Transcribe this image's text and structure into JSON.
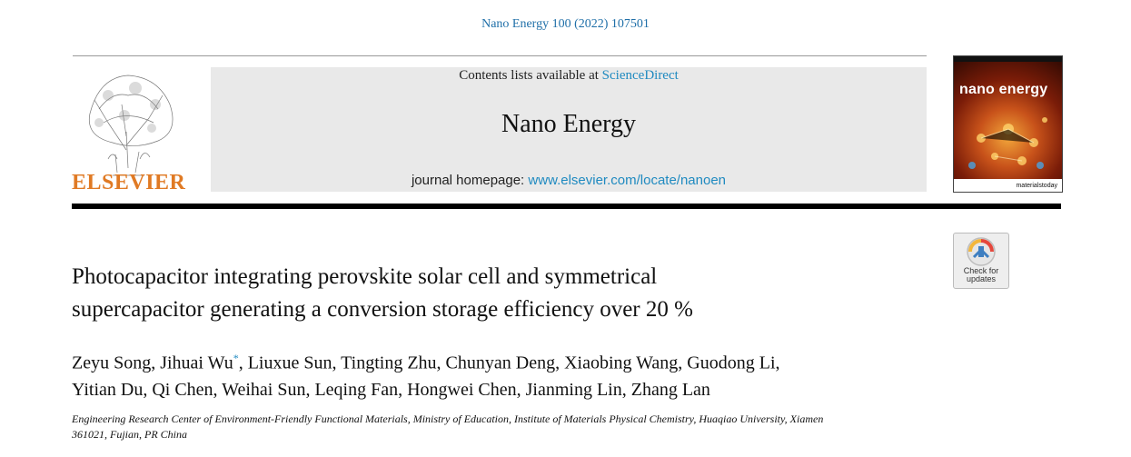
{
  "citation": "Nano Energy 100 (2022) 107501",
  "publisher": {
    "logo_text": "ELSEVIER",
    "logo_icon": "elsevier-tree-icon"
  },
  "header_box": {
    "contents_prefix": "Contents lists available at ",
    "contents_link": "ScienceDirect",
    "journal_name": "Nano Energy",
    "homepage_prefix": "journal homepage: ",
    "homepage_link": "www.elsevier.com/locate/nanoen"
  },
  "cover": {
    "title": "nano energy",
    "footer": "materialstoday"
  },
  "check_updates": {
    "icon": "crossmark-icon",
    "line1": "Check for",
    "line2": "updates"
  },
  "article": {
    "title_line1": "Photocapacitor integrating perovskite solar cell and symmetrical",
    "title_line2": "supercapacitor generating a conversion storage efficiency over 20 %",
    "authors_line1_a": "Zeyu Song, Jihuai Wu",
    "authors_mark": "*",
    "authors_line1_b": ", Liuxue Sun, Tingting Zhu, Chunyan Deng, Xiaobing Wang, Guodong Li,",
    "authors_line2": "Yitian Du, Qi Chen, Weihai Sun, Leqing Fan, Hongwei Chen, Jianming Lin, Zhang Lan",
    "affiliation_line1": "Engineering Research Center of Environment-Friendly Functional Materials, Ministry of Education, Institute of Materials Physical Chemistry, Huaqiao University, Xiamen",
    "affiliation_line2": "361021, Fujian, PR China"
  },
  "colors": {
    "link": "#1f8ac0",
    "elsevier_orange": "#e07a24",
    "header_grey": "#e9e9e9"
  }
}
